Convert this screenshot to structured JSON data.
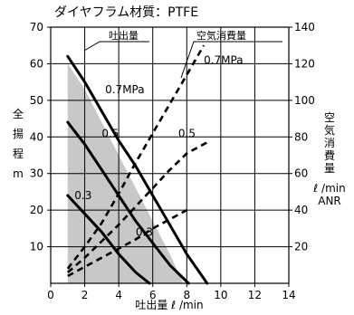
{
  "chart_data": {
    "type": "line",
    "title": "ダイヤフラム材質：PTFE",
    "xlabel": "吐出量 ℓ /min",
    "ylabel_left": [
      "全",
      "揚",
      "程",
      "m"
    ],
    "ylabel_right": [
      "空",
      "気",
      "消",
      "費",
      "量"
    ],
    "yunit_right": [
      "ℓ /min",
      "ANR"
    ],
    "xlim": [
      0,
      14
    ],
    "ylim_left": [
      0,
      70
    ],
    "ylim_right": [
      0,
      140
    ],
    "xticks": [
      "0",
      "2",
      "4",
      "6",
      "8",
      "10",
      "12",
      "14"
    ],
    "yticks_left": [
      "10",
      "20",
      "30",
      "40",
      "50",
      "60",
      "70"
    ],
    "yticks_right": [
      "20",
      "40",
      "60",
      "80",
      "100",
      "120",
      "140"
    ],
    "legend_head": "吐出量",
    "legend_air": "空気消費量",
    "shaded_region": [
      [
        1,
        0
      ],
      [
        1,
        60
      ],
      [
        2,
        53
      ],
      [
        3,
        44
      ],
      [
        4,
        35
      ],
      [
        5,
        26
      ],
      [
        6,
        17
      ],
      [
        7,
        8
      ],
      [
        7.8,
        0
      ]
    ],
    "series": [
      {
        "name": "0.7MPa",
        "kind": "head",
        "axis": "left",
        "x": [
          1,
          2,
          3,
          4,
          5,
          6,
          7,
          8,
          9.2
        ],
        "y": [
          62,
          55,
          47,
          39,
          32,
          24,
          16,
          8,
          0
        ]
      },
      {
        "name": "0.5",
        "kind": "head",
        "axis": "left",
        "x": [
          1,
          2,
          3,
          4,
          5,
          6,
          7,
          8.1
        ],
        "y": [
          44,
          38,
          31,
          24,
          17,
          11,
          5,
          0
        ]
      },
      {
        "name": "0.3",
        "kind": "head",
        "axis": "left",
        "x": [
          1,
          2,
          3,
          4,
          5,
          5.8
        ],
        "y": [
          24,
          19,
          14,
          8,
          3,
          0
        ]
      },
      {
        "name": "0.7MPa",
        "kind": "air",
        "axis": "right",
        "x": [
          1,
          2,
          3,
          4,
          5,
          6,
          7,
          8,
          9
        ],
        "y": [
          8,
          20,
          33,
          49,
          66,
          82,
          98,
          114,
          130
        ]
      },
      {
        "name": "0.5",
        "kind": "air",
        "axis": "right",
        "x": [
          1,
          2,
          3,
          4,
          5,
          6,
          7,
          8,
          9.2
        ],
        "y": [
          6,
          14,
          23,
          32,
          42,
          52,
          62,
          71,
          77
        ]
      },
      {
        "name": "0.3",
        "kind": "air",
        "axis": "right",
        "x": [
          1,
          2,
          3,
          4,
          5,
          6,
          7,
          8
        ],
        "y": [
          4,
          9,
          14,
          19,
          24,
          30,
          35,
          40
        ]
      }
    ],
    "annotations": [
      {
        "text": "0.7MPa",
        "x": 3.2,
        "y": 52
      },
      {
        "text": "0.5",
        "x": 3.0,
        "y": 40
      },
      {
        "text": "0.5",
        "x": 7.5,
        "y": 40
      },
      {
        "text": "0.3",
        "x": 1.4,
        "y": 23
      },
      {
        "text": "0.3",
        "x": 5.0,
        "y": 13
      },
      {
        "text": "0.7MPa",
        "x": 9.0,
        "y": 60
      }
    ],
    "grid": true
  }
}
